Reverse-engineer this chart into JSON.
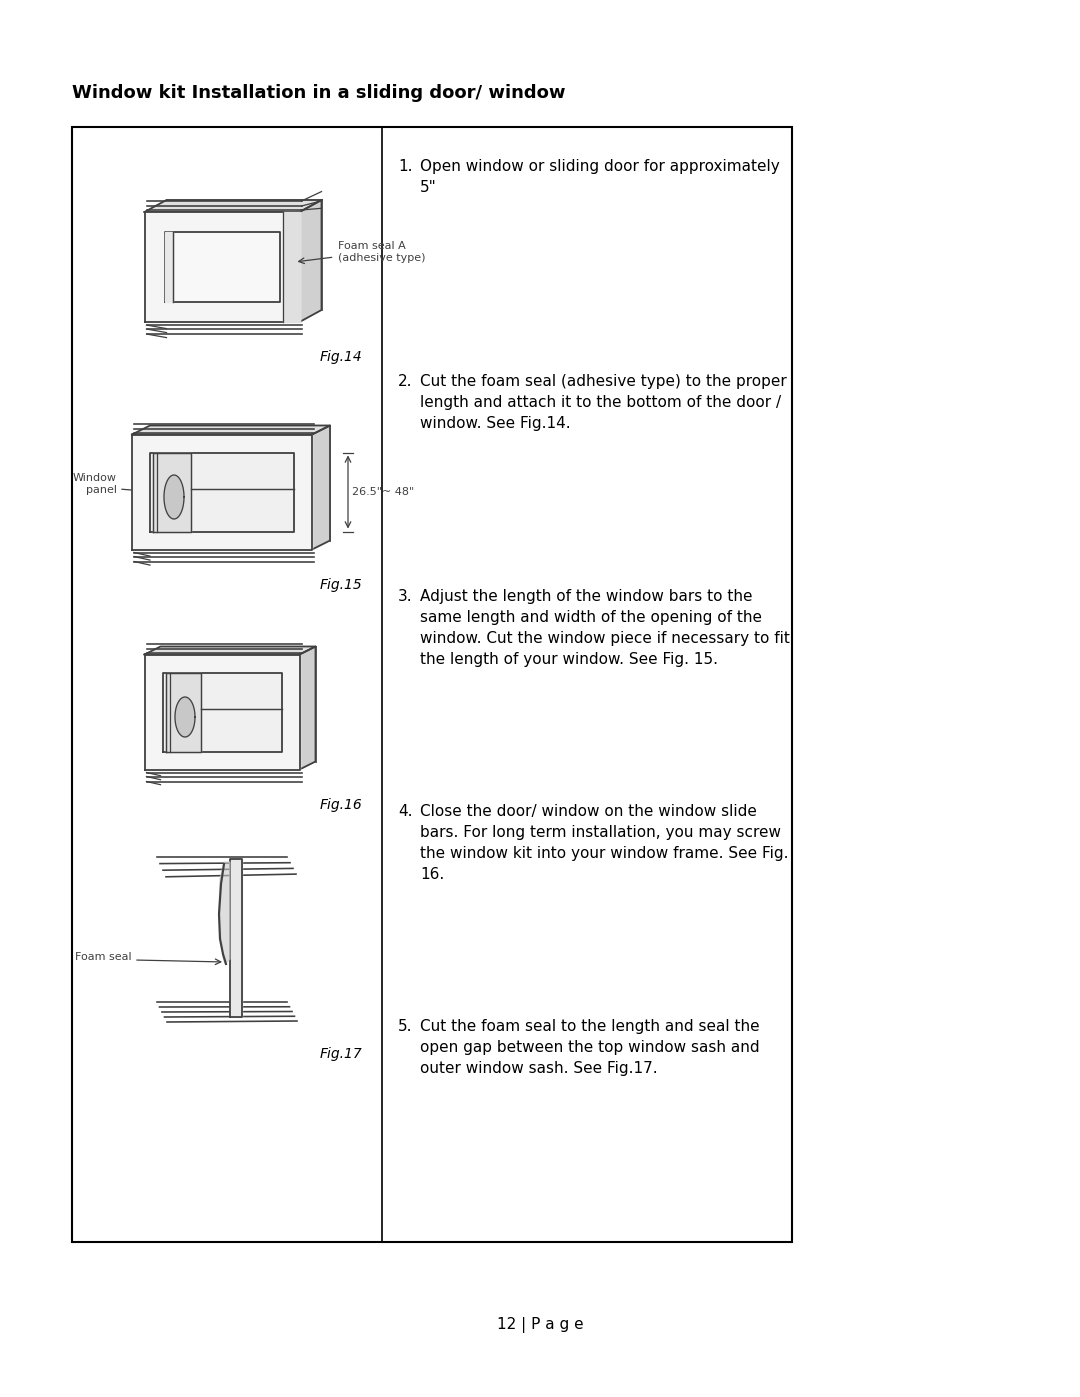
{
  "title": "Window kit Installation in a sliding door/ window",
  "page_number": "12 | P a g e",
  "background_color": "#ffffff",
  "text_color": "#000000",
  "instructions": [
    {
      "num": "1.",
      "text": "Open window or sliding door for approximately\n5\""
    },
    {
      "num": "2.",
      "text": "Cut the foam seal (adhesive type) to the proper\nlength and attach it to the bottom of the door /\nwindow. See Fig.14."
    },
    {
      "num": "3.",
      "text": "Adjust the length of the window bars to the\nsame length and width of the opening of the\nwindow. Cut the window piece if necessary to fit\nthe length of your window. See Fig. 15."
    },
    {
      "num": "4.",
      "text": "Close the door/ window on the window slide\nbars. For long term installation, you may screw\nthe window kit into your window frame. See Fig.\n16."
    },
    {
      "num": "5.",
      "text": "Cut the foam seal to the length and seal the\nopen gap between the top window sash and\nouter window sash. See Fig.17."
    }
  ],
  "line_color": "#404040",
  "line_color2": "#888888",
  "fig_label_fontsize": 10,
  "annot_fontsize": 8,
  "instr_num_fontsize": 11,
  "instr_text_fontsize": 11,
  "title_fontsize": 13
}
